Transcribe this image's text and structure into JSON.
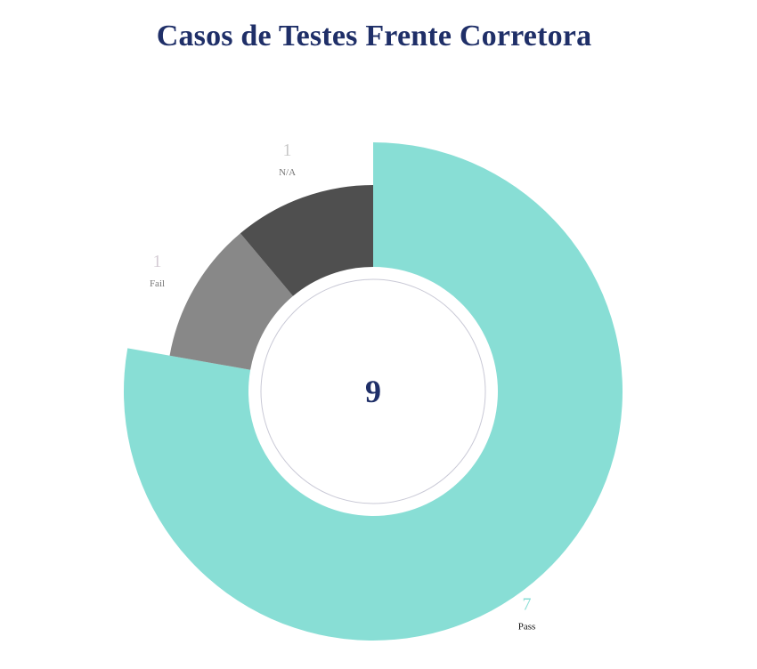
{
  "chart_data": {
    "type": "pie",
    "variant": "donut",
    "title": "Casos de Testes Frente Corretora",
    "total": "9",
    "slices": [
      {
        "name": "Pass",
        "value": 7,
        "color": "#88DED5",
        "value_color": "#88DED5",
        "label_color": "#111111"
      },
      {
        "name": "Fail",
        "value": 1,
        "color": "#888888",
        "value_color": "#D4CCD4",
        "label_color": "#777777"
      },
      {
        "name": "N/A",
        "value": 1,
        "color": "#4F4F4F",
        "value_color": "#C8C8C8",
        "label_color": "#777777"
      }
    ],
    "start": "top",
    "direction": "clockwise",
    "legend": "none"
  },
  "colors": {
    "title": "#1F2F68",
    "center_text": "#1F2F68",
    "center_ring": "#C9C9D6",
    "background": "#FFFFFF"
  }
}
